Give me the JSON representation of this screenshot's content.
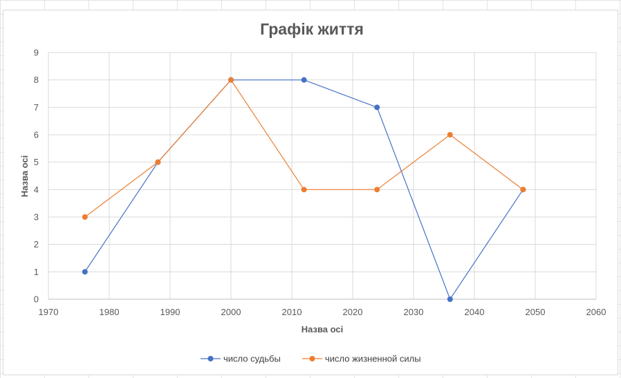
{
  "chart_data": {
    "type": "scatter",
    "title": "Графік життя",
    "xlabel": "Назва осі",
    "ylabel": "Назва осі",
    "xlim": [
      1970,
      2060
    ],
    "ylim": [
      0,
      9
    ],
    "xticks": [
      1970,
      1980,
      1990,
      2000,
      2010,
      2020,
      2030,
      2040,
      2050,
      2060
    ],
    "yticks": [
      0,
      1,
      2,
      3,
      4,
      5,
      6,
      7,
      8,
      9
    ],
    "grid": true,
    "legend_position": "bottom",
    "series": [
      {
        "name": "число судьбы",
        "color": "#4472C4",
        "x": [
          1976,
          1988,
          2000,
          2012,
          2024,
          2036,
          2048
        ],
        "y": [
          1,
          5,
          8,
          8,
          7,
          0,
          4
        ]
      },
      {
        "name": "число жизненной силы",
        "color": "#ED7D31",
        "x": [
          1976,
          1988,
          2000,
          2012,
          2024,
          2036,
          2048
        ],
        "y": [
          3,
          5,
          8,
          4,
          4,
          6,
          4
        ]
      }
    ]
  }
}
